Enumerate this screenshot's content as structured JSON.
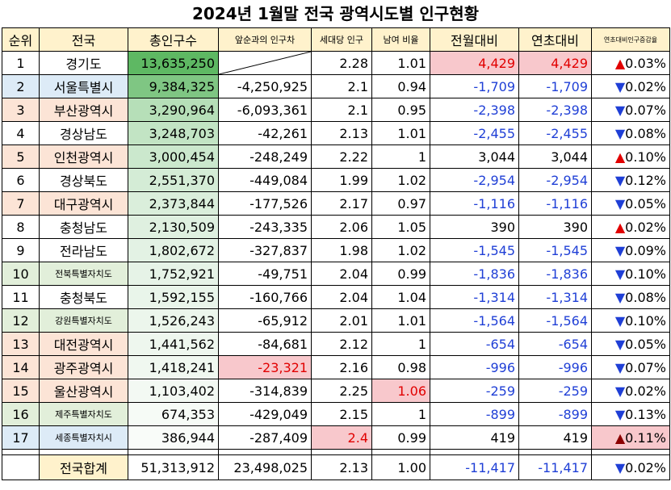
{
  "title": "2024년 1월말 전국 광역시도별 인구현황",
  "headers": [
    "순위",
    "전국",
    "총인구수",
    "앞순과의 인구차",
    "세대당 인구",
    "남여 비율",
    "전월대비",
    "연초대비",
    "연초대비인구증감율"
  ],
  "rows": [
    {
      "rank": "1",
      "name": "경기도",
      "pop": "13,635,250",
      "diff": "",
      "hh": "2.28",
      "ratio": "1.01",
      "mom": "4,429",
      "ytd": "4,429",
      "arrow": "▲",
      "pct": "0.03%",
      "dir": "up"
    },
    {
      "rank": "2",
      "name": "서울특별시",
      "pop": "9,384,325",
      "diff": "-4,250,925",
      "hh": "2.1",
      "ratio": "0.94",
      "mom": "-1,709",
      "ytd": "-1,709",
      "arrow": "▼",
      "pct": "0.02%",
      "dir": "down"
    },
    {
      "rank": "3",
      "name": "부산광역시",
      "pop": "3,290,964",
      "diff": "-6,093,361",
      "hh": "2.1",
      "ratio": "0.95",
      "mom": "-2,398",
      "ytd": "-2,398",
      "arrow": "▼",
      "pct": "0.07%",
      "dir": "down"
    },
    {
      "rank": "4",
      "name": "경상남도",
      "pop": "3,248,703",
      "diff": "-42,261",
      "hh": "2.13",
      "ratio": "1.01",
      "mom": "-2,455",
      "ytd": "-2,455",
      "arrow": "▼",
      "pct": "0.08%",
      "dir": "down"
    },
    {
      "rank": "5",
      "name": "인천광역시",
      "pop": "3,000,454",
      "diff": "-248,249",
      "hh": "2.22",
      "ratio": "1",
      "mom": "3,044",
      "ytd": "3,044",
      "arrow": "▲",
      "pct": "0.10%",
      "dir": "up"
    },
    {
      "rank": "6",
      "name": "경상북도",
      "pop": "2,551,370",
      "diff": "-449,084",
      "hh": "1.99",
      "ratio": "1.02",
      "mom": "-2,954",
      "ytd": "-2,954",
      "arrow": "▼",
      "pct": "0.12%",
      "dir": "down"
    },
    {
      "rank": "7",
      "name": "대구광역시",
      "pop": "2,373,844",
      "diff": "-177,526",
      "hh": "2.17",
      "ratio": "0.97",
      "mom": "-1,116",
      "ytd": "-1,116",
      "arrow": "▼",
      "pct": "0.05%",
      "dir": "down"
    },
    {
      "rank": "8",
      "name": "충청남도",
      "pop": "2,130,509",
      "diff": "-243,335",
      "hh": "2.06",
      "ratio": "1.05",
      "mom": "390",
      "ytd": "390",
      "arrow": "▲",
      "pct": "0.02%",
      "dir": "up"
    },
    {
      "rank": "9",
      "name": "전라남도",
      "pop": "1,802,672",
      "diff": "-327,837",
      "hh": "1.98",
      "ratio": "1.02",
      "mom": "-1,545",
      "ytd": "-1,545",
      "arrow": "▼",
      "pct": "0.09%",
      "dir": "down"
    },
    {
      "rank": "10",
      "name": "전북특별자치도",
      "pop": "1,752,921",
      "diff": "-49,751",
      "hh": "2.04",
      "ratio": "0.99",
      "mom": "-1,836",
      "ytd": "-1,836",
      "arrow": "▼",
      "pct": "0.10%",
      "dir": "down"
    },
    {
      "rank": "11",
      "name": "충청북도",
      "pop": "1,592,155",
      "diff": "-160,766",
      "hh": "2.04",
      "ratio": "1.04",
      "mom": "-1,314",
      "ytd": "-1,314",
      "arrow": "▼",
      "pct": "0.08%",
      "dir": "down"
    },
    {
      "rank": "12",
      "name": "강원특별자치도",
      "pop": "1,526,243",
      "diff": "-65,912",
      "hh": "2.01",
      "ratio": "1.01",
      "mom": "-1,564",
      "ytd": "-1,564",
      "arrow": "▼",
      "pct": "0.10%",
      "dir": "down"
    },
    {
      "rank": "13",
      "name": "대전광역시",
      "pop": "1,441,562",
      "diff": "-84,681",
      "hh": "2.12",
      "ratio": "1",
      "mom": "-654",
      "ytd": "-654",
      "arrow": "▼",
      "pct": "0.05%",
      "dir": "down"
    },
    {
      "rank": "14",
      "name": "광주광역시",
      "pop": "1,418,241",
      "diff": "-23,321",
      "hh": "2.16",
      "ratio": "0.98",
      "mom": "-996",
      "ytd": "-996",
      "arrow": "▼",
      "pct": "0.07%",
      "dir": "down"
    },
    {
      "rank": "15",
      "name": "울산광역시",
      "pop": "1,103,402",
      "diff": "-314,839",
      "hh": "2.25",
      "ratio": "1.06",
      "mom": "-259",
      "ytd": "-259",
      "arrow": "▼",
      "pct": "0.02%",
      "dir": "down"
    },
    {
      "rank": "16",
      "name": "제주특별자치도",
      "pop": "674,353",
      "diff": "-429,049",
      "hh": "2.15",
      "ratio": "1",
      "mom": "-899",
      "ytd": "-899",
      "arrow": "▼",
      "pct": "0.13%",
      "dir": "down"
    },
    {
      "rank": "17",
      "name": "세종특별자치시",
      "pop": "386,944",
      "diff": "-287,409",
      "hh": "2.4",
      "ratio": "0.99",
      "mom": "419",
      "ytd": "419",
      "arrow": "▲",
      "pct": "0.11%",
      "dir": "up"
    }
  ],
  "total": {
    "name": "전국합계",
    "pop": "51,313,912",
    "diff": "23,498,025",
    "hh": "2.13",
    "ratio": "1.00",
    "mom": "-11,417",
    "ytd": "-11,417",
    "arrow": "▼",
    "pct": "0.02%"
  },
  "colors": {
    "header_bg": "#fff2cc",
    "rank_blue": "#ddebf7",
    "rank_orange": "#fce4d6",
    "rank_green": "#e2efda",
    "pink": "#f8c8cc",
    "up_red": "#e10000",
    "down_blue": "#1f3fd6"
  }
}
